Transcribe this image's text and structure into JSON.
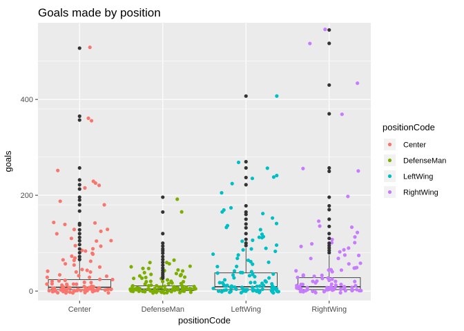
{
  "chart_data": {
    "type": "scatter",
    "title": "Goals made by position",
    "xlabel": "positionCode",
    "ylabel": "goals",
    "categories": [
      "Center",
      "DefenseMan",
      "LeftWing",
      "RightWing"
    ],
    "yticks": [
      0,
      200,
      400
    ],
    "ylim": [
      -20,
      560
    ],
    "grid": true,
    "legend": {
      "title": "positionCode",
      "placement": "right"
    },
    "colors": {
      "Center": "#F8766D",
      "DefenseMan": "#7CAE00",
      "LeftWing": "#00BFC4",
      "RightWing": "#C77CFF",
      "outlier": "#333333",
      "panel": "#EBEBEB",
      "grid": "#FFFFFF"
    },
    "boxes": [
      {
        "category": "Center",
        "q1": 3,
        "median": 8,
        "q3": 24,
        "whisker_low": 0,
        "whisker_high": 65
      },
      {
        "category": "DefenseMan",
        "q1": 1,
        "median": 4,
        "q3": 11,
        "whisker_low": 0,
        "whisker_high": 26
      },
      {
        "category": "LeftWing",
        "q1": 3,
        "median": 9,
        "q3": 38,
        "whisker_low": 0,
        "whisker_high": 90
      },
      {
        "category": "RightWing",
        "q1": 3,
        "median": 9,
        "q3": 28,
        "whisker_low": 0,
        "whisker_high": 75
      }
    ],
    "outliers": [
      {
        "category": "Center",
        "values": [
          507,
          365,
          357,
          257,
          232,
          222,
          213,
          196,
          190,
          180,
          167,
          141,
          138,
          128,
          120,
          112,
          105,
          97,
          88,
          80,
          72,
          66
        ]
      },
      {
        "category": "DefenseMan",
        "values": [
          196,
          165,
          120,
          100,
          94,
          88,
          84,
          79,
          72,
          66,
          60,
          54,
          48,
          43,
          38,
          34,
          30,
          27
        ]
      },
      {
        "category": "LeftWing",
        "values": [
          407,
          270,
          257,
          237,
          222,
          178,
          165,
          160,
          150,
          140,
          132,
          120,
          108,
          100,
          95
        ]
      },
      {
        "category": "RightWing",
        "values": [
          545,
          517,
          430,
          370,
          257,
          250,
          196,
          178,
          170,
          150,
          135,
          120,
          110,
          100,
          95,
          90,
          85,
          80
        ]
      }
    ],
    "series": [
      {
        "name": "Center",
        "values": [
          507,
          365,
          357,
          255,
          232,
          224,
          218,
          213,
          190,
          183,
          143,
          141,
          138,
          132,
          128,
          122,
          118,
          110,
          105,
          102,
          98,
          92,
          88,
          85,
          80,
          78,
          75,
          72,
          68,
          65,
          62,
          58,
          55,
          52,
          50,
          48,
          45,
          42,
          40,
          38,
          36,
          34,
          32,
          30,
          28,
          26,
          25,
          24,
          22,
          21,
          20,
          19,
          18,
          17,
          16,
          15,
          14,
          13,
          12,
          11,
          10,
          10,
          9,
          9,
          8,
          8,
          7,
          7,
          6,
          6,
          6,
          5,
          5,
          5,
          4,
          4,
          4,
          4,
          3,
          3,
          3,
          3,
          3,
          2,
          2,
          2,
          2,
          2,
          2,
          1,
          1,
          1,
          1,
          1,
          1,
          1,
          0,
          0,
          0,
          0,
          0,
          0,
          0,
          0,
          0,
          0,
          0,
          0,
          0,
          0,
          0,
          0
        ]
      },
      {
        "name": "DefenseMan",
        "values": [
          196,
          165,
          68,
          62,
          58,
          56,
          54,
          52,
          50,
          48,
          46,
          44,
          42,
          40,
          38,
          36,
          34,
          32,
          30,
          28,
          27,
          26,
          25,
          24,
          23,
          22,
          21,
          20,
          19,
          18,
          17,
          16,
          15,
          14,
          13,
          12,
          12,
          11,
          11,
          10,
          10,
          9,
          9,
          8,
          8,
          8,
          7,
          7,
          7,
          6,
          6,
          6,
          5,
          5,
          5,
          5,
          4,
          4,
          4,
          4,
          3,
          3,
          3,
          3,
          3,
          3,
          2,
          2,
          2,
          2,
          2,
          2,
          2,
          1,
          1,
          1,
          1,
          1,
          1,
          1,
          1,
          1,
          0,
          0,
          0,
          0,
          0,
          0,
          0,
          0,
          0,
          0,
          0,
          0,
          0,
          0,
          0,
          0,
          0,
          0,
          0,
          0,
          0,
          0
        ]
      },
      {
        "name": "LeftWing",
        "values": [
          407,
          268,
          257,
          242,
          238,
          237,
          224,
          208,
          170,
          168,
          165,
          160,
          150,
          140,
          136,
          132,
          128,
          120,
          116,
          112,
          108,
          104,
          100,
          96,
          92,
          88,
          84,
          80,
          76,
          72,
          68,
          64,
          60,
          56,
          52,
          50,
          48,
          46,
          44,
          42,
          40,
          38,
          36,
          34,
          32,
          30,
          28,
          26,
          25,
          24,
          22,
          21,
          20,
          19,
          18,
          17,
          16,
          15,
          14,
          13,
          12,
          11,
          10,
          10,
          9,
          9,
          8,
          8,
          7,
          7,
          6,
          6,
          5,
          5,
          5,
          4,
          4,
          4,
          3,
          3,
          3,
          3,
          2,
          2,
          2,
          2,
          1,
          1,
          1,
          1,
          1,
          0,
          0,
          0,
          0,
          0,
          0,
          0,
          0,
          0,
          0,
          0,
          0
        ]
      },
      {
        "name": "RightWing",
        "values": [
          545,
          517,
          430,
          372,
          257,
          253,
          196,
          145,
          135,
          130,
          120,
          115,
          110,
          105,
          100,
          95,
          90,
          88,
          85,
          80,
          76,
          72,
          68,
          64,
          60,
          56,
          52,
          50,
          48,
          46,
          44,
          42,
          40,
          38,
          36,
          34,
          32,
          30,
          28,
          26,
          25,
          24,
          22,
          21,
          20,
          19,
          18,
          17,
          16,
          15,
          14,
          13,
          12,
          11,
          10,
          10,
          9,
          9,
          8,
          8,
          7,
          7,
          6,
          6,
          5,
          5,
          5,
          4,
          4,
          4,
          3,
          3,
          3,
          3,
          2,
          2,
          2,
          2,
          1,
          1,
          1,
          1,
          1,
          0,
          0,
          0,
          0,
          0,
          0,
          0,
          0,
          0,
          0,
          0,
          0
        ]
      }
    ]
  }
}
